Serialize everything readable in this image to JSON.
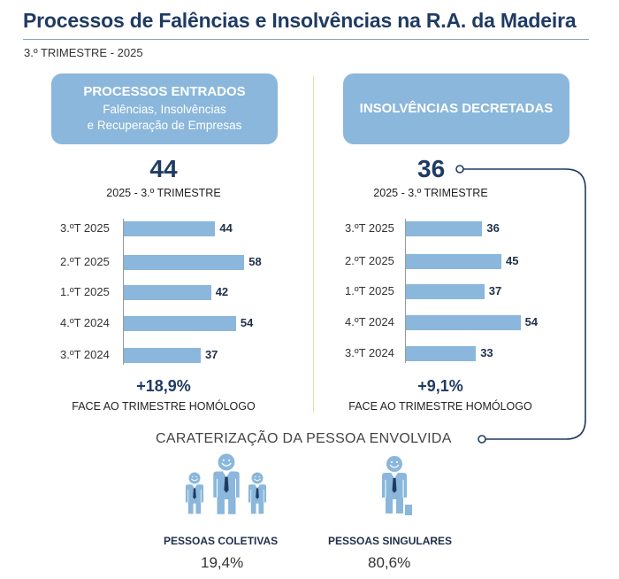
{
  "title": "Processos de Falências e Insolvências na R.A. da Madeira",
  "subtitle": "3.º TRIMESTRE - 2025",
  "left_panel": {
    "heading": "PROCESSOS ENTRADOS",
    "sub_line1": "Falências, Insolvências",
    "sub_line2": "e Recuperação de Empresas",
    "total": "44",
    "period": "2025 - 3.º TRIMESTRE",
    "change": "+18,9%",
    "change_label": "FACE AO TRIMESTRE HOMÓLOGO"
  },
  "right_panel": {
    "heading": "INSOLVÊNCIAS DECRETADAS",
    "total": "36",
    "period": "2025 - 3.º TRIMESTRE",
    "change": "+9,1%",
    "change_label": "FACE AO TRIMESTRE HOMÓLOGO"
  },
  "chart_data": [
    {
      "type": "bar",
      "orientation": "horizontal",
      "title": "PROCESSOS ENTRADOS",
      "categories": [
        "3.ºT 2025",
        "2.ºT 2025",
        "1.ºT 2025",
        "4.ºT 2024",
        "3.ºT 2024"
      ],
      "values": [
        44,
        58,
        42,
        54,
        37
      ],
      "color": "#8ab7db"
    },
    {
      "type": "bar",
      "orientation": "horizontal",
      "title": "INSOLVÊNCIAS DECRETADAS",
      "categories": [
        "3.ºT 2025",
        "2.ºT 2025",
        "1.ºT 2025",
        "4.ºT 2024",
        "3.ºT 2024"
      ],
      "values": [
        36,
        45,
        37,
        54,
        33
      ],
      "color": "#8ab7db"
    }
  ],
  "characterization": {
    "heading": "CARATERIZAÇÃO DA PESSOA ENVOLVIDA",
    "collective_label": "PESSOAS COLETIVAS",
    "collective_value": "19,4%",
    "singular_label": "PESSOAS SINGULARES",
    "singular_value": "80,6%"
  },
  "colors": {
    "accent": "#8ab7db",
    "dark": "#1f3b63"
  }
}
